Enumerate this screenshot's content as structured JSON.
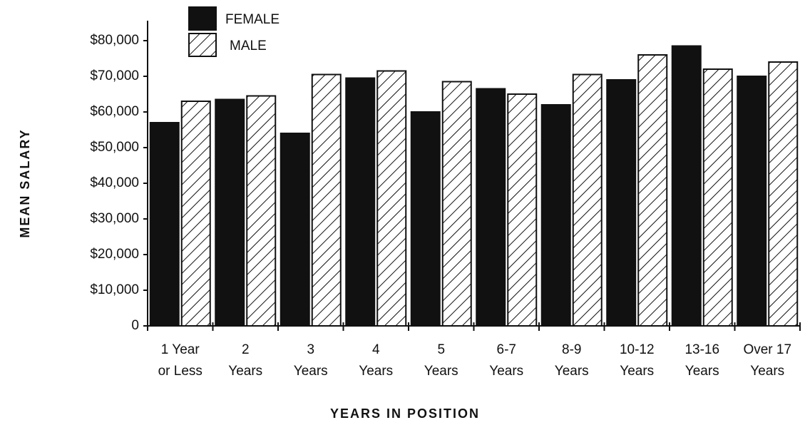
{
  "chart_data": {
    "type": "bar",
    "xlabel": "YEARS IN POSITION",
    "ylabel": "MEAN SALARY",
    "categories": [
      [
        "1 Year",
        "or Less"
      ],
      [
        "2",
        "Years"
      ],
      [
        "3",
        "Years"
      ],
      [
        "4",
        "Years"
      ],
      [
        "5",
        "Years"
      ],
      [
        "6-7",
        "Years"
      ],
      [
        "8-9",
        "Years"
      ],
      [
        "10-12",
        "Years"
      ],
      [
        "13-16",
        "Years"
      ],
      [
        "Over 17",
        "Years"
      ]
    ],
    "series": [
      {
        "name": "FEMALE",
        "color": "#111111",
        "values": [
          57000,
          63500,
          54000,
          69500,
          60000,
          66500,
          62000,
          69000,
          78500,
          70000
        ]
      },
      {
        "name": "MALE",
        "color": "#ffffff",
        "hatch": true,
        "values": [
          63000,
          64500,
          70500,
          71500,
          68500,
          65000,
          70500,
          76000,
          72000,
          74000
        ]
      }
    ],
    "ylim": [
      0,
      80000
    ],
    "yticks": [
      0,
      {
        "value": 10000,
        "label": "$10,000"
      },
      {
        "value": 20000,
        "label": "$20,000"
      },
      {
        "value": 30000,
        "label": "$30,000"
      },
      {
        "value": 40000,
        "label": "$40,000"
      },
      {
        "value": 50000,
        "label": "$50,000"
      },
      {
        "value": 60000,
        "label": "$60,000"
      },
      {
        "value": 70000,
        "label": "$70,000"
      },
      {
        "value": 80000,
        "label": "$80,000"
      }
    ],
    "grid": false,
    "legend": "top-left"
  }
}
